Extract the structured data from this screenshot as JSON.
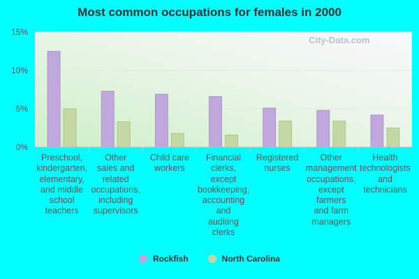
{
  "colors": {
    "background": "#00FFFF",
    "rockfish": "#C0A8DC",
    "north_carolina": "#C4D8A4"
  },
  "watermark": "City-Data.com",
  "chart_data": {
    "type": "bar",
    "title": "Most common occupations for females in 2000",
    "xlabel": "",
    "ylabel": "",
    "ylim": [
      0,
      15
    ],
    "yticks": [
      "0%",
      "5%",
      "10%",
      "15%"
    ],
    "categories": [
      "Preschool, kindergarten, elementary, and middle school teachers",
      "Other sales and related occupations, including supervisors",
      "Child care workers",
      "Financial clerks, except bookkeeping, accounting and auditing clerks",
      "Registered nurses",
      "Other management occupations, except farmers and farm managers",
      "Health technologists and technicians"
    ],
    "category_lines": [
      [
        "Preschool,",
        "kindergarten,",
        "elementary,",
        "and middle",
        "school",
        "teachers"
      ],
      [
        "Other",
        "sales and",
        "related",
        "occupations,",
        "including",
        "supervisors"
      ],
      [
        "Child care",
        "workers"
      ],
      [
        "Financial",
        "clerks,",
        "except",
        "bookkeeping,",
        "accounting",
        "and",
        "auditing",
        "clerks"
      ],
      [
        "Registered",
        "nurses"
      ],
      [
        "Other",
        "management",
        "occupations,",
        "except",
        "farmers",
        "and farm",
        "managers"
      ],
      [
        "Health",
        "technologists",
        "and",
        "technicians"
      ]
    ],
    "series": [
      {
        "name": "Rockfish",
        "values": [
          12.5,
          7.3,
          6.9,
          6.6,
          5.1,
          4.8,
          4.2
        ]
      },
      {
        "name": "North Carolina",
        "values": [
          5.0,
          3.3,
          1.8,
          1.6,
          3.4,
          3.4,
          2.5
        ]
      }
    ],
    "grid": true,
    "legend_position": "bottom"
  }
}
